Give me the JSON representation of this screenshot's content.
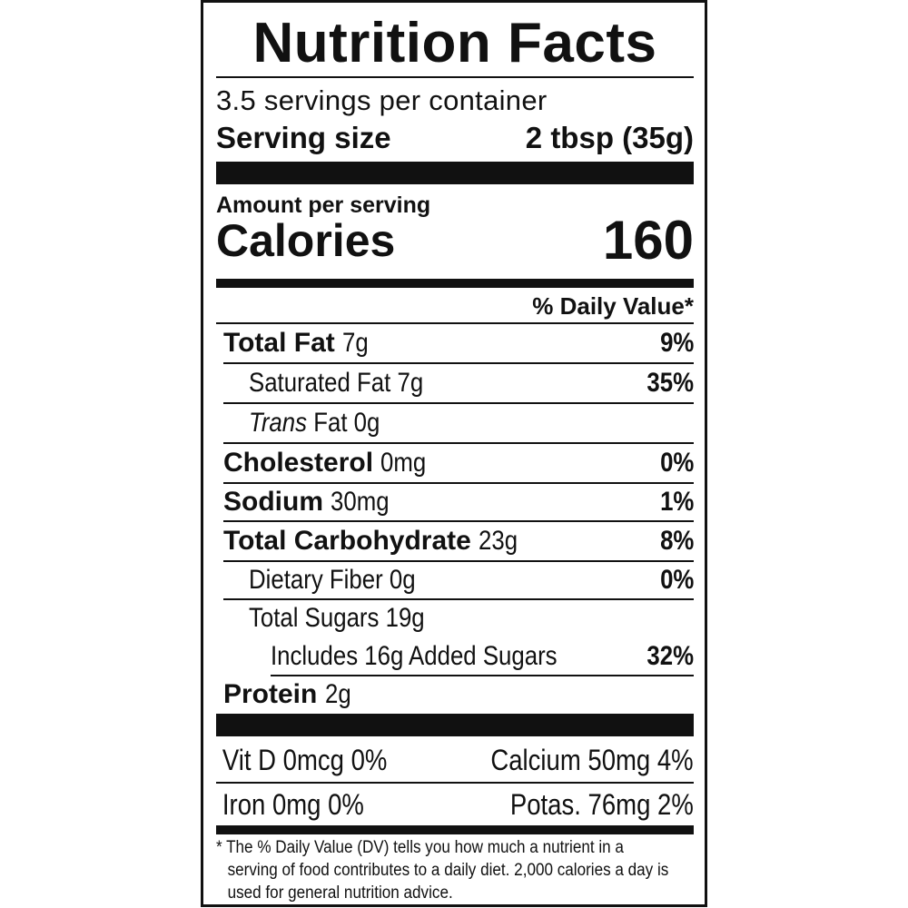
{
  "title": "Nutrition Facts",
  "servings_per_container": "3.5 servings per container",
  "serving_size": {
    "label": "Serving size",
    "value": "2 tbsp (35g)"
  },
  "amount_per_serving": "Amount per serving",
  "calories": {
    "label": "Calories",
    "value": "160"
  },
  "daily_value_header": "% Daily Value*",
  "nutrients": [
    {
      "name": "Total Fat",
      "amount": "7g",
      "dv": "9%"
    },
    {
      "name": "Saturated Fat",
      "amount": "7g",
      "dv": "35%"
    },
    {
      "name_italic": "Trans",
      "name": "Fat",
      "amount": "0g",
      "dv": ""
    },
    {
      "name": "Cholesterol",
      "amount": "0mg",
      "dv": "0%"
    },
    {
      "name": "Sodium",
      "amount": "30mg",
      "dv": "1%"
    },
    {
      "name": "Total Carbohydrate",
      "amount": "23g",
      "dv": "8%"
    },
    {
      "name": "Dietary Fiber",
      "amount": "0g",
      "dv": "0%"
    },
    {
      "name": "Total Sugars",
      "amount": "19g",
      "dv": ""
    },
    {
      "name": "Includes 16g Added Sugars",
      "amount": "",
      "dv": "32%"
    },
    {
      "name": "Protein",
      "amount": "2g",
      "dv": ""
    }
  ],
  "vitamins": [
    {
      "left": "Vit D 0mcg 0%",
      "right": "Calcium 50mg 4%"
    },
    {
      "left": "Iron 0mg 0%",
      "right": "Potas. 76mg 2%"
    }
  ],
  "footnote": "* The % Daily Value (DV) tells you how much a nutrient in a serving of food contributes to a daily diet. 2,000 calories a day is used for general nutrition advice."
}
